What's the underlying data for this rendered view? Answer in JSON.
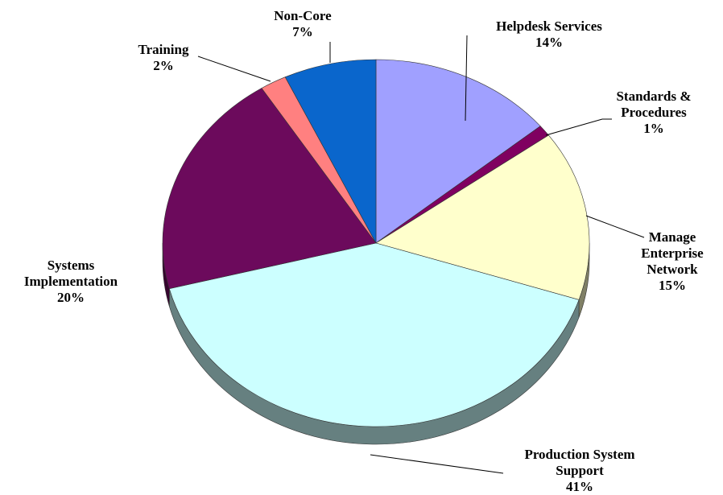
{
  "chart_data": {
    "type": "pie",
    "categories": [
      "Helpdesk Services",
      "Standards & Procedures",
      "Manage Enterprise Network",
      "Production System Support",
      "Systems Implementation",
      "Training",
      "Non-Core"
    ],
    "values": [
      14,
      1,
      15,
      41,
      20,
      2,
      7
    ],
    "value_labels": [
      "14%",
      "1%",
      "15%",
      "41%",
      "20%",
      "2%",
      "7%"
    ],
    "colors": [
      "#a0a0ff",
      "#800060",
      "#ffffcc",
      "#ccffff",
      "#6c0a5c",
      "#ff8080",
      "#0a66cc"
    ]
  }
}
